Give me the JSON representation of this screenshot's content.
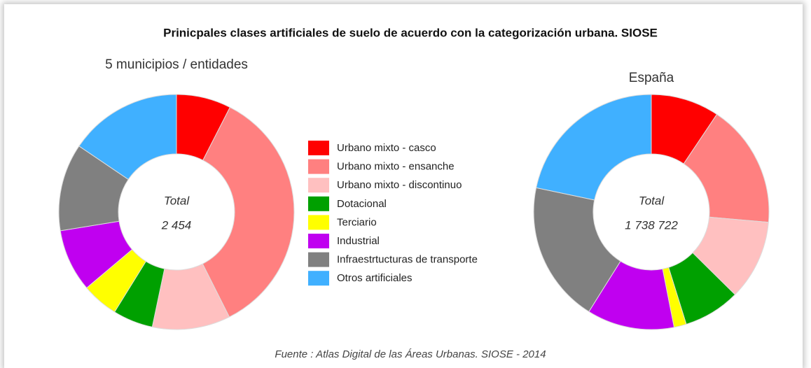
{
  "title": "Prinicpales clases artificiales de suelo de acuerdo con la categorización urbana. SIOSE",
  "source": "Fuente : Atlas Digital de las Áreas Urbanas. SIOSE - 2014",
  "chart_data": [
    {
      "type": "pie",
      "subtitle": "5 municipios / entidades",
      "categories": [
        "Urbano mixto - casco",
        "Urbano mixto - ensanche",
        "Urbano mixto - discontinuo",
        "Dotacional",
        "Terciario",
        "Industrial",
        "Infraestrtucturas de transporte",
        "Otros artificiales"
      ],
      "values": [
        7.5,
        35,
        10.7,
        5.5,
        5,
        8.6,
        12,
        15.5
      ],
      "colors": [
        "#ff0000",
        "#ff8080",
        "#ffc0c0",
        "#00a000",
        "#ffff00",
        "#c000f0",
        "#808080",
        "#40b0ff"
      ],
      "center_title": "Total",
      "center_value": "2 454"
    },
    {
      "type": "pie",
      "subtitle": "España",
      "categories": [
        "Urbano mixto - casco",
        "Urbano mixto - ensanche",
        "Urbano mixto - discontinuo",
        "Dotacional",
        "Terciario",
        "Industrial",
        "Infraestrtucturas de transporte",
        "Otros artificiales"
      ],
      "values": [
        9.4,
        17,
        11,
        7.8,
        1.7,
        12,
        19.4,
        21.7
      ],
      "colors": [
        "#ff0000",
        "#ff8080",
        "#ffc0c0",
        "#00a000",
        "#ffff00",
        "#c000f0",
        "#808080",
        "#40b0ff"
      ],
      "center_title": "Total",
      "center_value": "1 738 722"
    }
  ]
}
